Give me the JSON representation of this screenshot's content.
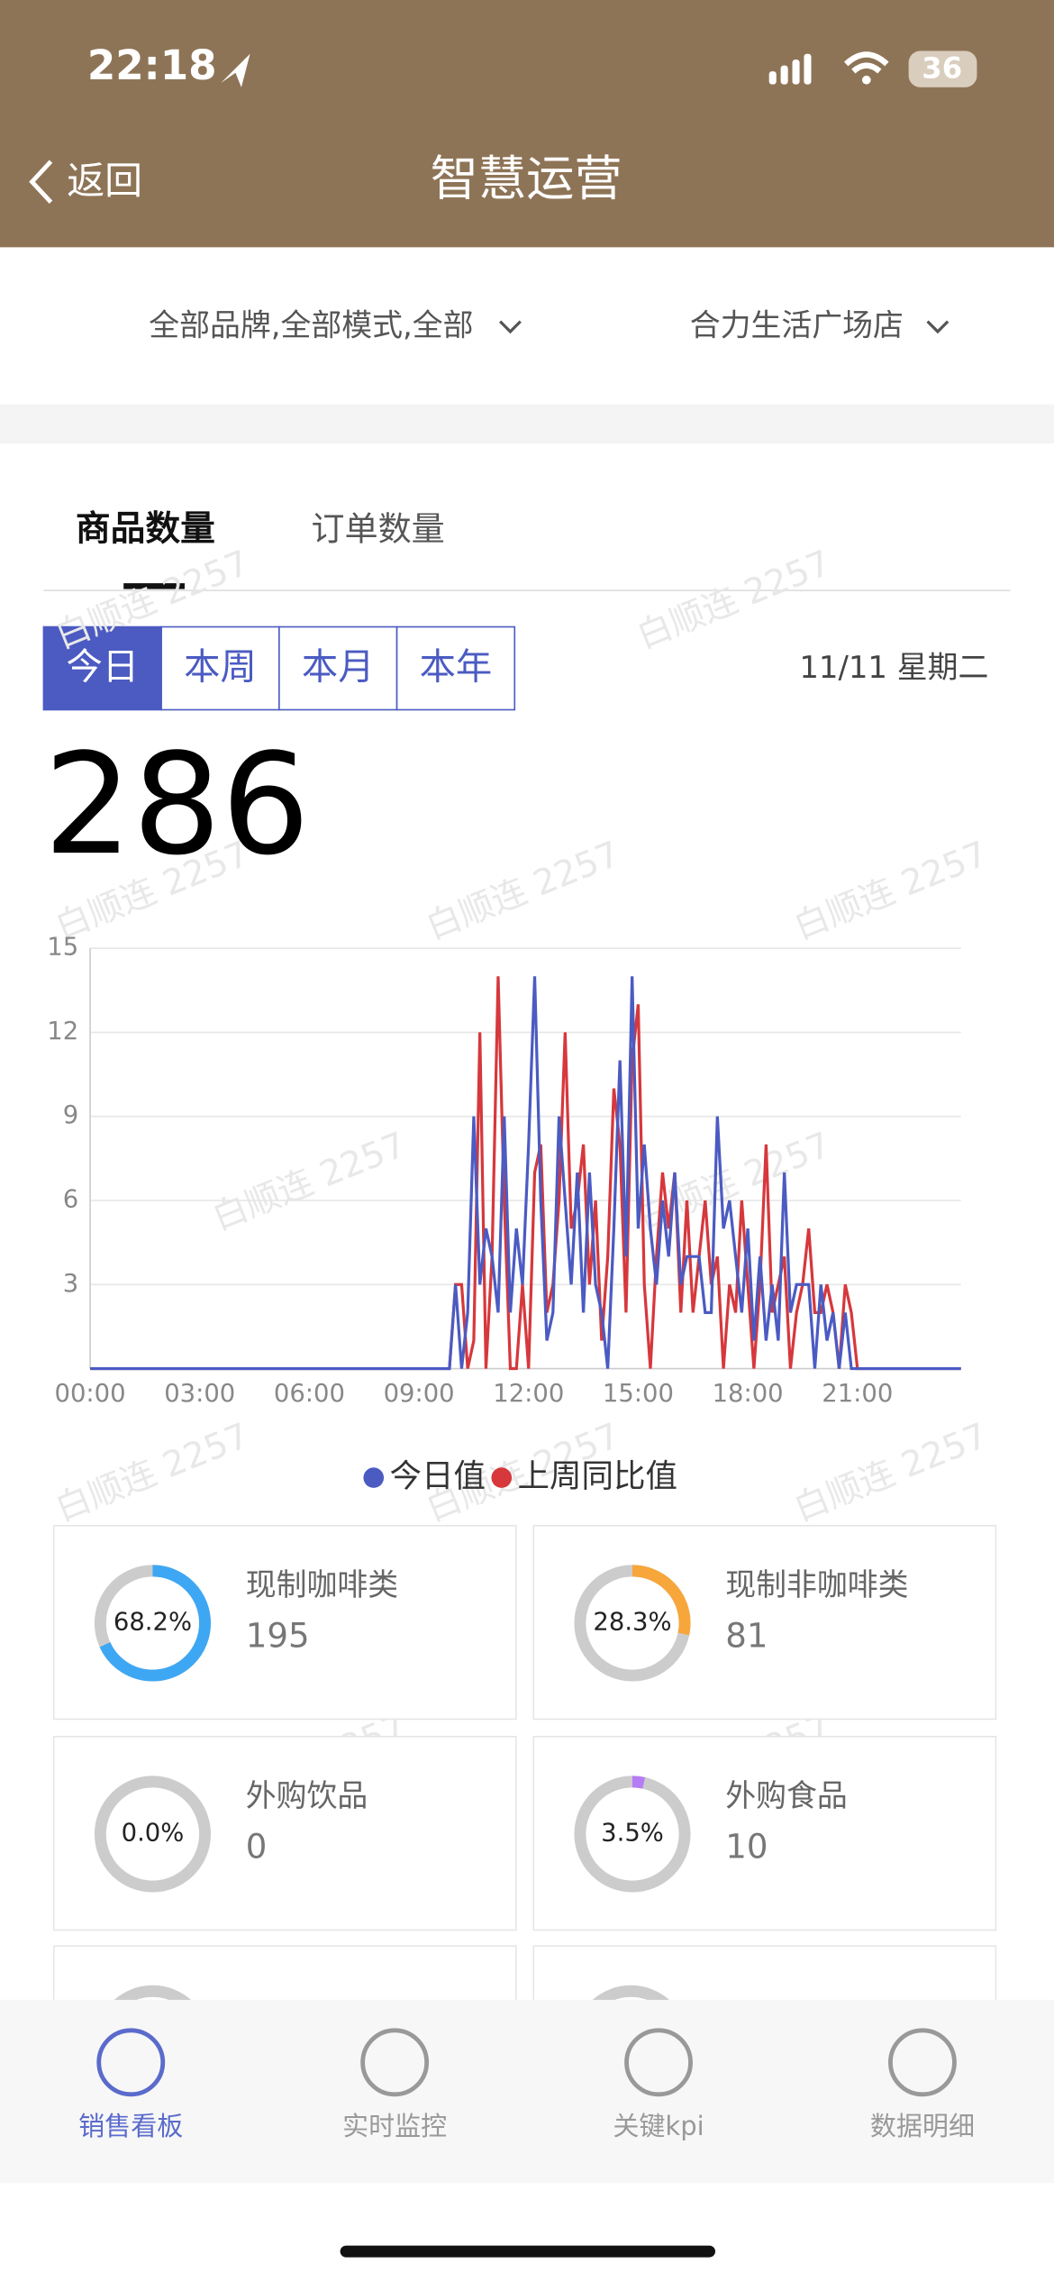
{
  "status_bar": {
    "time": "22:18",
    "battery": "36"
  },
  "nav": {
    "back": "返回",
    "title": "智慧运营"
  },
  "filters": [
    "全部品牌,全部模式,全部",
    "合力生活广场店"
  ],
  "tabs": [
    "商品数量",
    "订单数量"
  ],
  "periods": [
    "今日",
    "本周",
    "本月",
    "本年"
  ],
  "date": "11/11 星期二",
  "total": 286,
  "watermark": "白顺连 2257",
  "chart_data": {
    "type": "line",
    "categories": [
      "00:00",
      null,
      null,
      null,
      null,
      null,
      null,
      null,
      null,
      null,
      null,
      null,
      null,
      null,
      null,
      null,
      null,
      null,
      "03:00",
      null,
      null,
      null,
      null,
      null,
      null,
      null,
      null,
      null,
      null,
      null,
      null,
      null,
      null,
      null,
      null,
      null,
      "06:00",
      null,
      null,
      null,
      null,
      null,
      null,
      null,
      null,
      null,
      null,
      null,
      null,
      null,
      null,
      null,
      null,
      null,
      "09:00",
      null,
      null,
      null,
      null,
      null,
      null,
      null,
      null,
      null,
      null,
      null,
      null,
      null,
      null,
      null,
      null,
      null,
      "12:00",
      null,
      null,
      null,
      null,
      null,
      null,
      null,
      null,
      null,
      null,
      null,
      null,
      null,
      null,
      null,
      null,
      null,
      "15:00",
      null,
      null,
      null,
      null,
      null,
      null,
      null,
      null,
      null,
      null,
      null,
      null,
      null,
      null,
      null,
      null,
      null,
      "18:00",
      null,
      null,
      null,
      null,
      null,
      null,
      null,
      null,
      null,
      null,
      null,
      null,
      null,
      null,
      null,
      null,
      null,
      "21:00",
      null,
      null,
      null,
      null,
      null,
      null,
      null,
      null,
      null,
      null,
      null,
      null,
      null,
      null,
      null,
      null,
      null
    ],
    "series": [
      {
        "name": "今日值",
        "color": "#4b5bc2",
        "values": [
          0,
          0,
          0,
          0,
          0,
          0,
          0,
          0,
          0,
          0,
          0,
          0,
          0,
          0,
          0,
          0,
          0,
          0,
          0,
          0,
          0,
          0,
          0,
          0,
          0,
          0,
          0,
          0,
          0,
          0,
          0,
          0,
          0,
          0,
          0,
          0,
          0,
          0,
          0,
          0,
          0,
          0,
          0,
          0,
          0,
          0,
          0,
          0,
          0,
          0,
          0,
          0,
          0,
          0,
          0,
          0,
          0,
          0,
          0,
          0,
          3,
          0,
          2,
          9,
          3,
          5,
          4,
          2,
          9,
          2,
          5,
          3,
          8,
          14,
          6,
          1,
          2,
          9,
          6,
          3,
          7,
          2,
          7,
          3,
          2,
          0,
          5,
          11,
          4,
          14,
          5,
          8,
          5,
          3,
          6,
          4,
          7,
          3,
          4,
          4,
          4,
          2,
          2,
          9,
          5,
          6,
          4,
          2,
          5,
          1,
          4,
          1,
          3,
          1,
          7,
          2,
          3,
          3,
          3,
          0,
          3,
          1,
          2,
          0,
          2,
          0,
          0,
          0,
          0,
          0,
          0,
          0,
          0,
          0,
          0,
          0,
          0,
          0,
          0,
          0,
          0,
          0,
          0,
          0
        ]
      },
      {
        "name": "上周同比值",
        "color": "#d6383c",
        "values": [
          0,
          0,
          0,
          0,
          0,
          0,
          0,
          0,
          0,
          0,
          0,
          0,
          0,
          0,
          0,
          0,
          0,
          0,
          0,
          0,
          0,
          0,
          0,
          0,
          0,
          0,
          0,
          0,
          0,
          0,
          0,
          0,
          0,
          0,
          0,
          0,
          0,
          0,
          0,
          0,
          0,
          0,
          0,
          0,
          0,
          0,
          0,
          0,
          0,
          0,
          0,
          0,
          0,
          0,
          0,
          0,
          0,
          0,
          0,
          0,
          3,
          3,
          0,
          1,
          12,
          0,
          4,
          14,
          6,
          0,
          0,
          3,
          0,
          7,
          8,
          2,
          3,
          6,
          12,
          5,
          6,
          8,
          3,
          6,
          1,
          4,
          10,
          8,
          2,
          11,
          13,
          3,
          0,
          4,
          7,
          5,
          7,
          2,
          6,
          2,
          4,
          6,
          3,
          4,
          0,
          3,
          2,
          6,
          3,
          0,
          3,
          8,
          2,
          3,
          4,
          0,
          2,
          3,
          5,
          2,
          2,
          3,
          2,
          0,
          3,
          2,
          0,
          0,
          0,
          0,
          0,
          0,
          0,
          0,
          0,
          0,
          0,
          0,
          0,
          0,
          0,
          0,
          0,
          0
        ]
      }
    ],
    "ylim": [
      0,
      15
    ],
    "yticks": [
      3,
      6,
      9,
      12,
      15
    ],
    "grid": true
  },
  "cards": [
    {
      "name": "现制咖啡类",
      "percent": 68.2,
      "percent_label": "68.2%",
      "count": 195,
      "color": "#3ea7f4"
    },
    {
      "name": "现制非咖啡类",
      "percent": 28.3,
      "percent_label": "28.3%",
      "count": 81,
      "color": "#f7a63b"
    },
    {
      "name": "外购饮品",
      "percent": 0,
      "percent_label": "0.0%",
      "count": 0,
      "color": "#3ea7f4"
    },
    {
      "name": "外购食品",
      "percent": 3.5,
      "percent_label": "3.5%",
      "count": 10,
      "color": "#b57cf5"
    }
  ],
  "bottom_nav": [
    "销售看板",
    "实时监控",
    "关键kpi",
    "数据明细"
  ]
}
